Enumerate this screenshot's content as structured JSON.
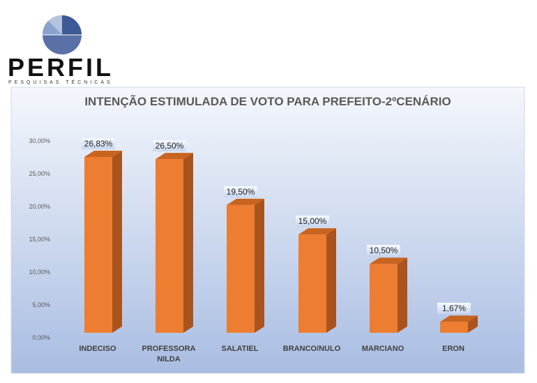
{
  "logo": {
    "name": "PERFIL",
    "tagline": "PESQUISAS TÉCNICAS"
  },
  "chart_data": {
    "type": "bar",
    "title": "INTENÇÃO ESTIMULADA DE VOTO PARA PREFEITO-2ºCENÁRIO",
    "categories": [
      [
        "INDECISO"
      ],
      [
        "PROFESSORA",
        "NILDA"
      ],
      [
        "SALATIEL"
      ],
      [
        "BRANCO/NULO"
      ],
      [
        "MARCIANO"
      ],
      [
        "ERON"
      ]
    ],
    "values": [
      26.83,
      26.5,
      19.5,
      15.0,
      10.5,
      1.67
    ],
    "data_labels": [
      "26,83%",
      "26,50%",
      "19,50%",
      "15,00%",
      "10,50%",
      "1,67%"
    ],
    "yticks": [
      0,
      5,
      10,
      15,
      20,
      25,
      30
    ],
    "ytick_labels": [
      "0,00%",
      "5,00%",
      "10,00%",
      "15,00%",
      "20,00%",
      "25,00%",
      "30,00%"
    ],
    "ylim": [
      0,
      30
    ],
    "xlabel": "",
    "ylabel": "",
    "colors": {
      "bar_front": "#ED7D31",
      "bar_side": "#A9541E",
      "bar_top": "#C86420"
    }
  }
}
